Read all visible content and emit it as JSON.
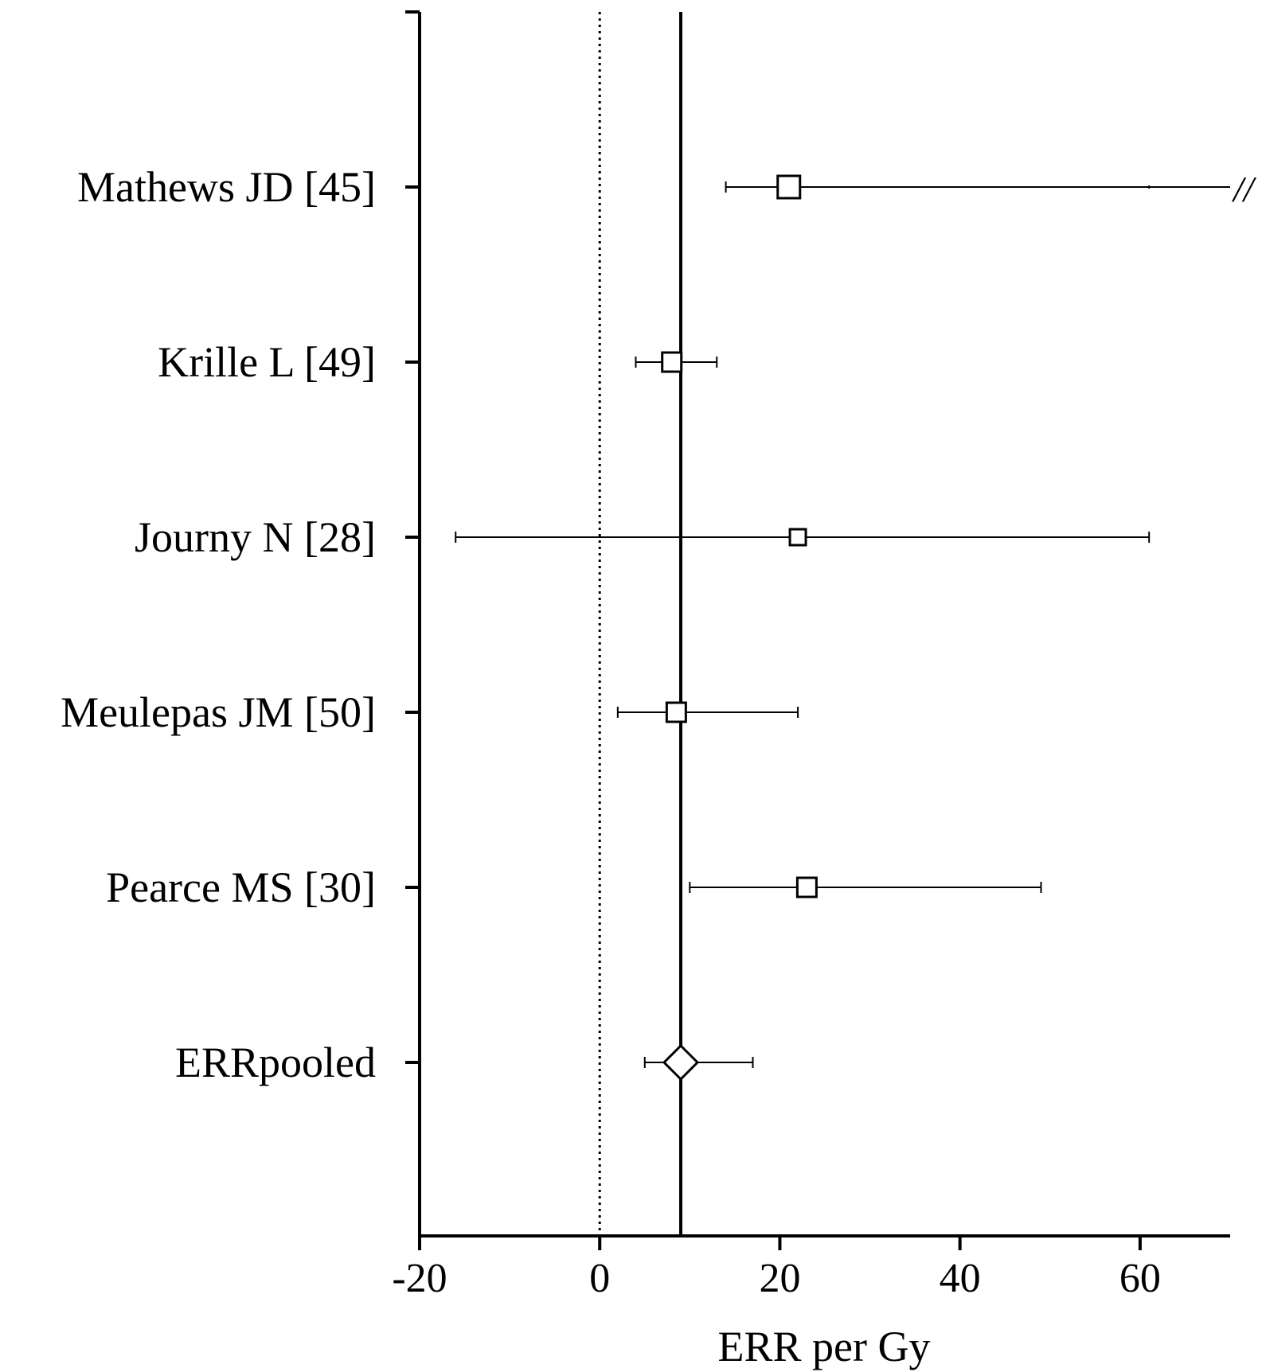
{
  "chart_data": {
    "type": "forest",
    "title": "",
    "xlabel": "ERR per Gy",
    "ylabel": "",
    "xlim": [
      -20,
      70
    ],
    "x_ticks": [
      -20,
      0,
      20,
      40,
      60
    ],
    "x_tick_labels": [
      "-20",
      "0",
      "20",
      "40",
      "60"
    ],
    "grid": false,
    "reference_lines": [
      {
        "x": 0,
        "style": "dotted"
      },
      {
        "x": 9,
        "style": "solid"
      }
    ],
    "studies": [
      {
        "label": "Mathews JD [45]",
        "estimate": 21,
        "lower": 14,
        "upper": 70,
        "truncated_upper": true,
        "marker": "square",
        "marker_size": "large"
      },
      {
        "label": "Krille L [49]",
        "estimate": 8,
        "lower": 4,
        "upper": 13,
        "truncated_upper": false,
        "marker": "square",
        "marker_size": "medium"
      },
      {
        "label": "Journy N [28]",
        "estimate": 22,
        "lower": -16,
        "upper": 61,
        "truncated_upper": false,
        "marker": "square",
        "marker_size": "small"
      },
      {
        "label": "Meulepas JM [50]",
        "estimate": 8.5,
        "lower": 2,
        "upper": 22,
        "truncated_upper": false,
        "marker": "square",
        "marker_size": "medium"
      },
      {
        "label": "Pearce MS [30]",
        "estimate": 23,
        "lower": 10,
        "upper": 49,
        "truncated_upper": false,
        "marker": "square",
        "marker_size": "medium"
      },
      {
        "label": "ERRpooled",
        "estimate": 9,
        "lower": 5,
        "upper": 17,
        "truncated_upper": false,
        "marker": "diamond",
        "marker_size": "large"
      }
    ],
    "truncation_mark": "//"
  }
}
